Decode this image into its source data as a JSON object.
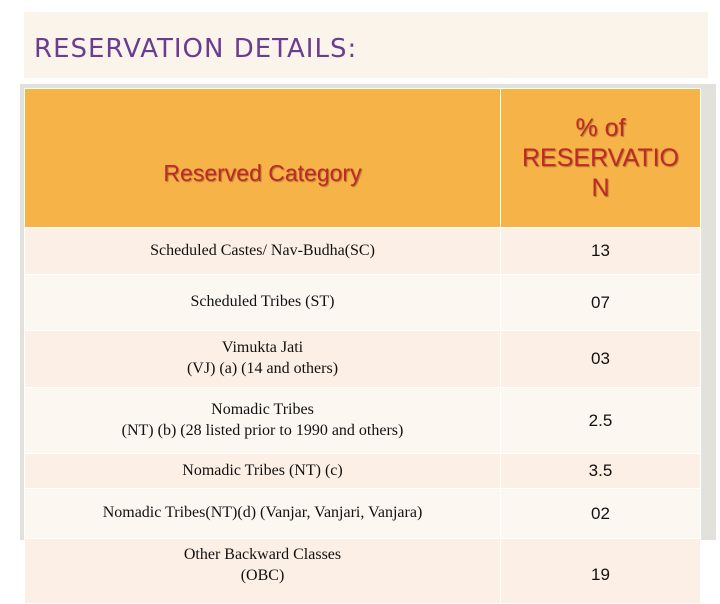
{
  "title": "RESERVATION DETAILS:",
  "table": {
    "headers": [
      "Reserved Category",
      "% of RESERVATIO N"
    ],
    "rows": [
      {
        "category_lines": [
          "Scheduled Castes/ Nav-Budha(SC)"
        ],
        "percent": "13"
      },
      {
        "category_lines": [
          "Scheduled Tribes (ST)"
        ],
        "percent": "07"
      },
      {
        "category_lines": [
          "Vimukta Jati",
          "(VJ) (a) (14 and others)"
        ],
        "percent": "03"
      },
      {
        "category_lines": [
          "Nomadic Tribes",
          "(NT) (b) (28 listed prior to 1990 and others)"
        ],
        "percent": "2.5"
      },
      {
        "category_lines": [
          "Nomadic Tribes (NT) (c)"
        ],
        "percent": "3.5"
      },
      {
        "category_lines": [
          "Nomadic Tribes(NT)(d) (Vanjar, Vanjari, Vanjara)"
        ],
        "percent": "02"
      },
      {
        "category_lines": [
          "Other Backward Classes",
          "(OBC)"
        ],
        "percent": "19"
      }
    ]
  },
  "colors": {
    "title_text": "#6a3d92",
    "title_background": "#faf4ea",
    "header_background": "#f6b348",
    "header_text": "#c0282a",
    "row_odd": "#fcefe6",
    "row_even": "#fdf7f2"
  }
}
